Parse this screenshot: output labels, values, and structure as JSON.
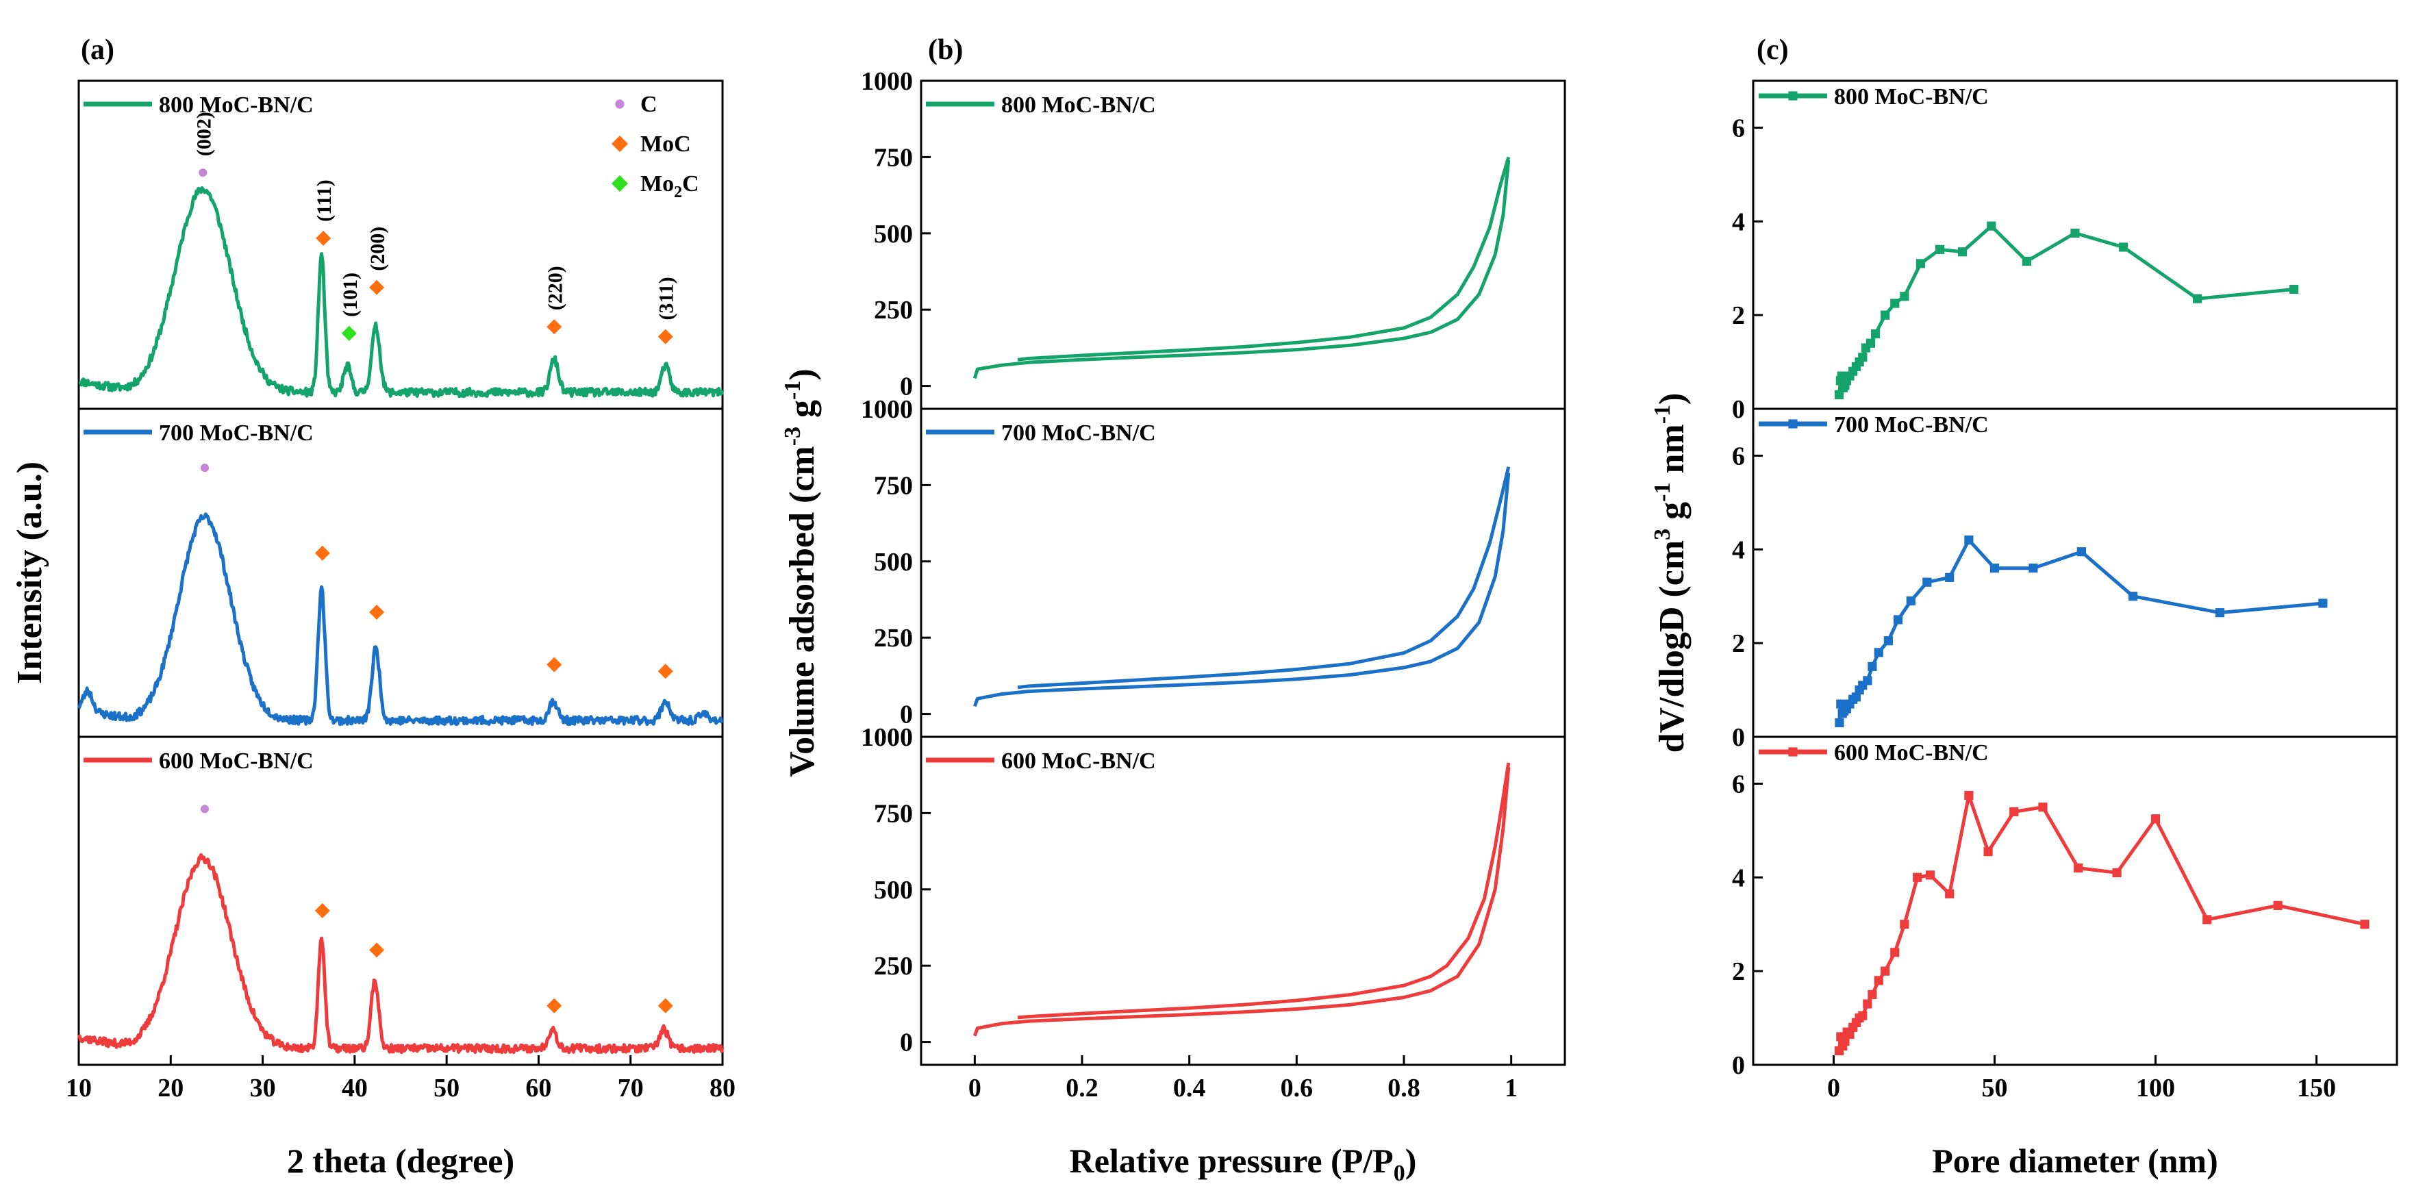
{
  "colors": {
    "green": "#14a36a",
    "blue": "#1b70c8",
    "red": "#ee3c3c",
    "purple": "#c586d6",
    "orange": "#ff6e0e",
    "lime": "#2ee01e"
  },
  "chart_data": [
    {
      "id": "a",
      "type": "line",
      "panel_label": "(a)",
      "xlabel": "2 theta (degree)",
      "ylabel": "Intensity (a.u.)",
      "xlim": [
        10,
        80
      ],
      "xticks": [
        10,
        20,
        30,
        40,
        50,
        60,
        70,
        80
      ],
      "legend": [
        {
          "marker": "circle",
          "color": "#c586d6",
          "label": "C"
        },
        {
          "marker": "diamond",
          "color": "#ff6e0e",
          "label": "MoC"
        },
        {
          "marker": "diamond",
          "color": "#2ee01e",
          "label_main": "Mo",
          "label_sub": "2",
          "label_tail": "C"
        }
      ],
      "series": [
        {
          "name": "800 MoC-BN/C",
          "color": "#14a36a",
          "peaks": [
            [
              23.5,
              0.62,
              3.0
            ],
            [
              36.4,
              0.42,
              0.35
            ],
            [
              39.2,
              0.08,
              0.4
            ],
            [
              42.3,
              0.2,
              0.45
            ],
            [
              61.7,
              0.1,
              0.45
            ],
            [
              73.8,
              0.08,
              0.45
            ]
          ],
          "baseline": 0.05,
          "noise": 0.012,
          "seed": 11,
          "annotations": [
            {
              "x": 23.5,
              "y": 0.72,
              "label": "(002)",
              "marker": "circle",
              "color": "#c586d6"
            },
            {
              "x": 36.6,
              "y": 0.52,
              "label": "(111)",
              "marker": "diamond",
              "color": "#ff6e0e"
            },
            {
              "x": 39.4,
              "y": 0.23,
              "label": "(101)",
              "marker": "diamond",
              "color": "#2ee01e"
            },
            {
              "x": 42.4,
              "y": 0.37,
              "label": "(200)",
              "marker": "diamond",
              "color": "#ff6e0e"
            },
            {
              "x": 61.7,
              "y": 0.25,
              "label": "(220)",
              "marker": "diamond",
              "color": "#ff6e0e"
            },
            {
              "x": 73.8,
              "y": 0.22,
              "label": "(311)",
              "marker": "diamond",
              "color": "#ff6e0e"
            }
          ]
        },
        {
          "name": "700 MoC-BN/C",
          "color": "#1b70c8",
          "peaks": [
            [
              23.7,
              0.62,
              2.8
            ],
            [
              11.0,
              0.06,
              0.5
            ],
            [
              36.4,
              0.4,
              0.38
            ],
            [
              42.3,
              0.22,
              0.42
            ],
            [
              61.6,
              0.06,
              0.45
            ],
            [
              73.8,
              0.06,
              0.45
            ],
            [
              78.0,
              0.02,
              0.5
            ]
          ],
          "baseline": 0.05,
          "noise": 0.012,
          "seed": 23,
          "annotations": [
            {
              "x": 23.7,
              "y": 0.82,
              "marker": "circle",
              "color": "#c586d6"
            },
            {
              "x": 36.5,
              "y": 0.56,
              "marker": "diamond",
              "color": "#ff6e0e"
            },
            {
              "x": 42.4,
              "y": 0.38,
              "marker": "diamond",
              "color": "#ff6e0e"
            },
            {
              "x": 61.7,
              "y": 0.22,
              "marker": "diamond",
              "color": "#ff6e0e"
            },
            {
              "x": 73.8,
              "y": 0.2,
              "marker": "diamond",
              "color": "#ff6e0e"
            }
          ]
        },
        {
          "name": "600 MoC-BN/C",
          "color": "#ee3c3c",
          "peaks": [
            [
              23.5,
              0.58,
              3.0
            ],
            [
              36.4,
              0.34,
              0.35
            ],
            [
              42.2,
              0.21,
              0.4
            ],
            [
              61.5,
              0.06,
              0.45
            ],
            [
              73.6,
              0.06,
              0.45
            ]
          ],
          "baseline": 0.05,
          "noise": 0.012,
          "seed": 37,
          "annotations": [
            {
              "x": 23.7,
              "y": 0.78,
              "marker": "circle",
              "color": "#c586d6"
            },
            {
              "x": 36.5,
              "y": 0.47,
              "marker": "diamond",
              "color": "#ff6e0e"
            },
            {
              "x": 42.4,
              "y": 0.35,
              "marker": "diamond",
              "color": "#ff6e0e"
            },
            {
              "x": 61.7,
              "y": 0.18,
              "marker": "diamond",
              "color": "#ff6e0e"
            },
            {
              "x": 73.8,
              "y": 0.18,
              "marker": "diamond",
              "color": "#ff6e0e"
            }
          ]
        }
      ]
    },
    {
      "id": "b",
      "type": "line",
      "panel_label": "(b)",
      "xlabel_main": "Relative pressure (P/P",
      "xlabel_sub": "0",
      "xlabel_tail": ")",
      "ylabel_parts": [
        "Volume adsorbed (cm",
        "-3",
        " g",
        "-1",
        ")"
      ],
      "xlim": [
        -0.1,
        1.1
      ],
      "xticks": [
        0.0,
        0.2,
        0.4,
        0.6,
        0.8,
        1.0
      ],
      "ylim": [
        -75,
        1000
      ],
      "yticks": [
        0,
        250,
        500,
        750,
        1000
      ],
      "series": [
        {
          "name": "800 MoC-BN/C",
          "color": "#14a36a",
          "adsorption": [
            [
              0.0,
              25
            ],
            [
              0.005,
              55
            ],
            [
              0.05,
              68
            ],
            [
              0.1,
              77
            ],
            [
              0.2,
              86
            ],
            [
              0.3,
              94
            ],
            [
              0.4,
              101
            ],
            [
              0.5,
              109
            ],
            [
              0.6,
              119
            ],
            [
              0.7,
              133
            ],
            [
              0.8,
              156
            ],
            [
              0.85,
              176
            ],
            [
              0.9,
              218
            ],
            [
              0.94,
              300
            ],
            [
              0.97,
              430
            ],
            [
              0.985,
              560
            ],
            [
              0.99,
              650
            ],
            [
              0.995,
              740
            ]
          ],
          "desorption": [
            [
              0.995,
              750
            ],
            [
              0.98,
              660
            ],
            [
              0.96,
              520
            ],
            [
              0.93,
              390
            ],
            [
              0.9,
              300
            ],
            [
              0.85,
              225
            ],
            [
              0.8,
              190
            ],
            [
              0.7,
              160
            ],
            [
              0.6,
              142
            ],
            [
              0.5,
              128
            ],
            [
              0.4,
              118
            ],
            [
              0.3,
              109
            ],
            [
              0.2,
              100
            ],
            [
              0.1,
              90
            ],
            [
              0.08,
              86
            ]
          ]
        },
        {
          "name": "700 MoC-BN/C",
          "color": "#1b70c8",
          "adsorption": [
            [
              0.0,
              25
            ],
            [
              0.005,
              50
            ],
            [
              0.05,
              65
            ],
            [
              0.1,
              74
            ],
            [
              0.2,
              82
            ],
            [
              0.3,
              89
            ],
            [
              0.4,
              96
            ],
            [
              0.5,
              104
            ],
            [
              0.6,
              114
            ],
            [
              0.7,
              128
            ],
            [
              0.8,
              152
            ],
            [
              0.85,
              172
            ],
            [
              0.9,
              215
            ],
            [
              0.94,
              300
            ],
            [
              0.97,
              450
            ],
            [
              0.985,
              600
            ],
            [
              0.995,
              790
            ]
          ],
          "desorption": [
            [
              0.995,
              810
            ],
            [
              0.98,
              700
            ],
            [
              0.96,
              560
            ],
            [
              0.93,
              410
            ],
            [
              0.9,
              320
            ],
            [
              0.85,
              240
            ],
            [
              0.8,
              200
            ],
            [
              0.7,
              165
            ],
            [
              0.6,
              146
            ],
            [
              0.5,
              132
            ],
            [
              0.4,
              121
            ],
            [
              0.3,
              111
            ],
            [
              0.2,
              101
            ],
            [
              0.1,
              91
            ],
            [
              0.08,
              87
            ]
          ]
        },
        {
          "name": "600 MoC-BN/C",
          "color": "#ee3c3c",
          "adsorption": [
            [
              0.0,
              20
            ],
            [
              0.005,
              45
            ],
            [
              0.05,
              60
            ],
            [
              0.1,
              68
            ],
            [
              0.2,
              76
            ],
            [
              0.3,
              83
            ],
            [
              0.4,
              90
            ],
            [
              0.5,
              98
            ],
            [
              0.6,
              108
            ],
            [
              0.7,
              122
            ],
            [
              0.8,
              146
            ],
            [
              0.85,
              168
            ],
            [
              0.9,
              215
            ],
            [
              0.94,
              320
            ],
            [
              0.97,
              500
            ],
            [
              0.985,
              700
            ],
            [
              0.995,
              900
            ]
          ],
          "desorption": [
            [
              0.995,
              915
            ],
            [
              0.985,
              800
            ],
            [
              0.97,
              640
            ],
            [
              0.95,
              470
            ],
            [
              0.92,
              340
            ],
            [
              0.88,
              250
            ],
            [
              0.85,
              215
            ],
            [
              0.8,
              185
            ],
            [
              0.7,
              155
            ],
            [
              0.6,
              136
            ],
            [
              0.5,
              122
            ],
            [
              0.4,
              111
            ],
            [
              0.3,
              102
            ],
            [
              0.2,
              93
            ],
            [
              0.1,
              83
            ],
            [
              0.08,
              80
            ]
          ]
        }
      ]
    },
    {
      "id": "c",
      "type": "line",
      "panel_label": "(c)",
      "xlabel": "Pore diameter (nm)",
      "ylabel_parts": [
        "dV/dlogD (cm",
        "3",
        " g",
        "-1",
        " nm",
        "-1",
        ")"
      ],
      "xlim": [
        -25,
        175
      ],
      "xticks": [
        0,
        50,
        100,
        150
      ],
      "panels": [
        {
          "name": "800 MoC-BN/C",
          "color": "#14a36a",
          "ylim": [
            0,
            7
          ],
          "yticks": [
            0,
            2,
            4,
            6
          ],
          "points": [
            [
              1.7,
              0.3
            ],
            [
              2.1,
              0.6
            ],
            [
              2.5,
              0.7
            ],
            [
              3.0,
              0.45
            ],
            [
              3.5,
              0.5
            ],
            [
              4,
              0.6
            ],
            [
              5,
              0.7
            ],
            [
              6,
              0.8
            ],
            [
              7,
              0.9
            ],
            [
              8,
              1.0
            ],
            [
              9,
              1.1
            ],
            [
              10,
              1.3
            ],
            [
              11.5,
              1.4
            ],
            [
              13,
              1.6
            ],
            [
              16,
              2.0
            ],
            [
              19,
              2.25
            ],
            [
              22,
              2.4
            ],
            [
              27,
              3.1
            ],
            [
              33,
              3.4
            ],
            [
              40,
              3.35
            ],
            [
              49,
              3.9
            ],
            [
              60,
              3.15
            ],
            [
              75,
              3.75
            ],
            [
              90,
              3.45
            ],
            [
              113,
              2.35
            ],
            [
              143,
              2.55
            ]
          ]
        },
        {
          "name": "700 MoC-BN/C",
          "color": "#1b70c8",
          "ylim": [
            0,
            7
          ],
          "yticks": [
            0,
            2,
            4,
            6
          ],
          "points": [
            [
              1.8,
              0.3
            ],
            [
              2.2,
              0.7
            ],
            [
              2.7,
              0.5
            ],
            [
              3.2,
              0.55
            ],
            [
              4,
              0.6
            ],
            [
              5,
              0.7
            ],
            [
              6,
              0.8
            ],
            [
              7,
              0.85
            ],
            [
              8,
              1.0
            ],
            [
              9,
              1.1
            ],
            [
              10.5,
              1.2
            ],
            [
              12,
              1.5
            ],
            [
              14,
              1.8
            ],
            [
              17,
              2.05
            ],
            [
              20,
              2.5
            ],
            [
              24,
              2.9
            ],
            [
              29,
              3.3
            ],
            [
              36,
              3.4
            ],
            [
              42,
              4.2
            ],
            [
              50,
              3.6
            ],
            [
              62,
              3.6
            ],
            [
              77,
              3.95
            ],
            [
              93,
              3.0
            ],
            [
              120,
              2.65
            ],
            [
              152,
              2.85
            ]
          ]
        },
        {
          "name": "600 MoC-BN/C",
          "color": "#ee3c3c",
          "ylim": [
            0,
            7
          ],
          "yticks": [
            0,
            2,
            4,
            6
          ],
          "points": [
            [
              1.7,
              0.3
            ],
            [
              2.2,
              0.6
            ],
            [
              2.8,
              0.4
            ],
            [
              3.5,
              0.5
            ],
            [
              4.2,
              0.7
            ],
            [
              5,
              0.65
            ],
            [
              6,
              0.8
            ],
            [
              7,
              0.9
            ],
            [
              8,
              1.0
            ],
            [
              9,
              1.05
            ],
            [
              10.5,
              1.3
            ],
            [
              12,
              1.5
            ],
            [
              14,
              1.8
            ],
            [
              16,
              2.0
            ],
            [
              19,
              2.4
            ],
            [
              22,
              3.0
            ],
            [
              26,
              4.0
            ],
            [
              30,
              4.05
            ],
            [
              36,
              3.65
            ],
            [
              42,
              5.75
            ],
            [
              48,
              4.55
            ],
            [
              56,
              5.4
            ],
            [
              65,
              5.5
            ],
            [
              76,
              4.2
            ],
            [
              88,
              4.1
            ],
            [
              100,
              5.25
            ],
            [
              116,
              3.1
            ],
            [
              138,
              3.4
            ],
            [
              165,
              3.0
            ]
          ]
        }
      ]
    }
  ]
}
